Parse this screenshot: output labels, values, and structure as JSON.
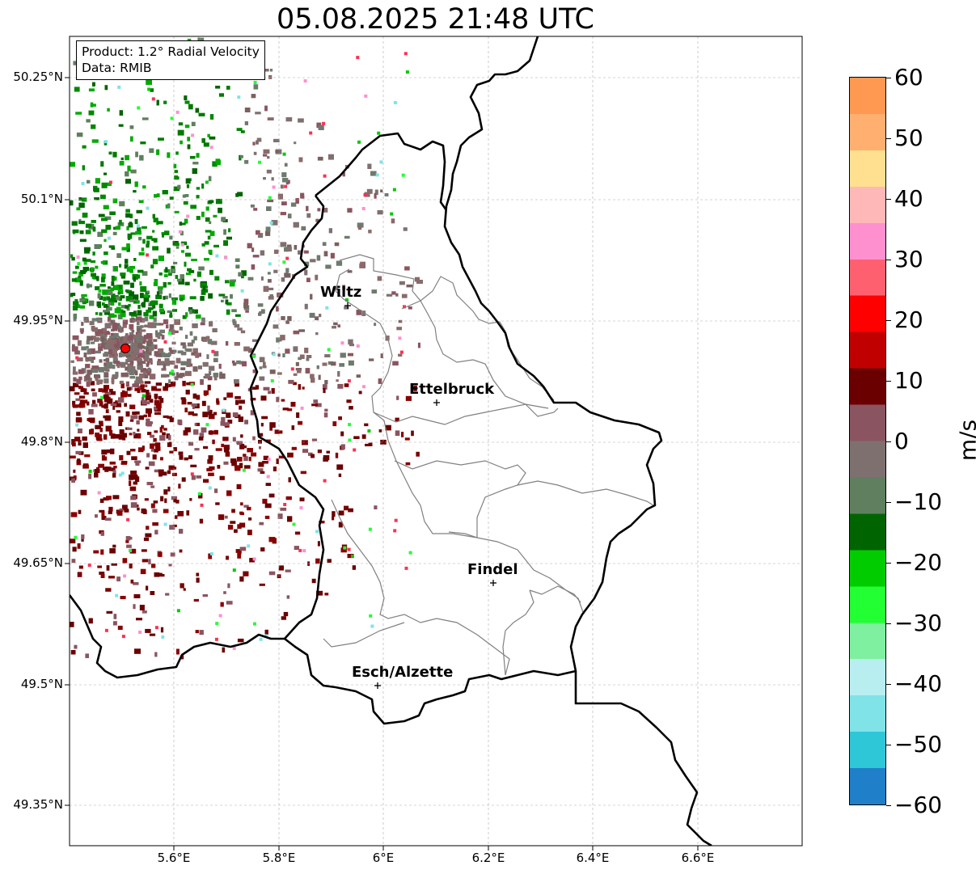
{
  "title": "05.08.2025 21:48 UTC",
  "info": {
    "product": "Product: 1.2° Radial Velocity",
    "data": "Data: RMIB"
  },
  "latitude_ticks": [
    "50.25°N",
    "50.1°N",
    "49.95°N",
    "49.8°N",
    "49.65°N",
    "49.5°N",
    "49.35°N"
  ],
  "longitude_ticks": [
    "5.6°E",
    "5.8°E",
    "6°E",
    "6.2°E",
    "6.4°E",
    "6.6°E"
  ],
  "colorbar": {
    "unit": "m/s",
    "ticks": [
      "60",
      "50",
      "40",
      "30",
      "20",
      "10",
      "0",
      "−10",
      "−20",
      "−30",
      "−40",
      "−50",
      "−60"
    ],
    "range": [
      -60,
      60
    ],
    "colors": [
      "#1f7fc8",
      "#2ec7d8",
      "#7fe3e8",
      "#b8eef0",
      "#7ff0a0",
      "#22ff33",
      "#00cc00",
      "#006400",
      "#5f7f5f",
      "#7f7070",
      "#8a5560",
      "#6a0000",
      "#c00000",
      "#ff0000",
      "#ff6070",
      "#ff90d0",
      "#ffb8b8",
      "#ffe090",
      "#ffb070",
      "#ff9850"
    ]
  },
  "cities": [
    {
      "name": "Wiltz"
    },
    {
      "name": "Ettelbruck"
    },
    {
      "name": "Findel"
    },
    {
      "name": "Esch/Alzette"
    }
  ],
  "radar_site": {
    "color": "#ff0000"
  }
}
